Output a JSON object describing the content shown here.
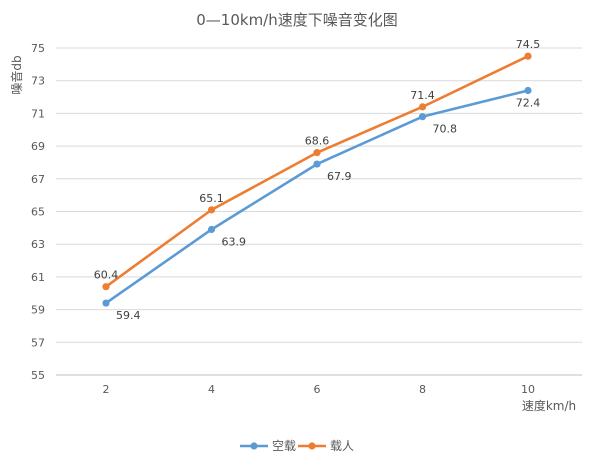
{
  "chart_data": {
    "type": "line",
    "title": "0—10km/h速度下噪音变化图",
    "xlabel": "速度km/h",
    "ylabel": "噪音db",
    "categories": [
      "2",
      "4",
      "6",
      "8",
      "10"
    ],
    "x": [
      2,
      4,
      6,
      8,
      10
    ],
    "ylim": [
      55,
      75
    ],
    "yticks": [
      55,
      57,
      59,
      61,
      63,
      65,
      67,
      69,
      71,
      73,
      75
    ],
    "grid": true,
    "legend_position": "bottom",
    "series": [
      {
        "name": "空载",
        "color": "#5b9bd5",
        "values": [
          59.4,
          63.9,
          67.9,
          70.8,
          72.4
        ]
      },
      {
        "name": "载人",
        "color": "#ed7d31",
        "values": [
          60.4,
          65.1,
          68.6,
          71.4,
          74.5
        ]
      }
    ]
  }
}
